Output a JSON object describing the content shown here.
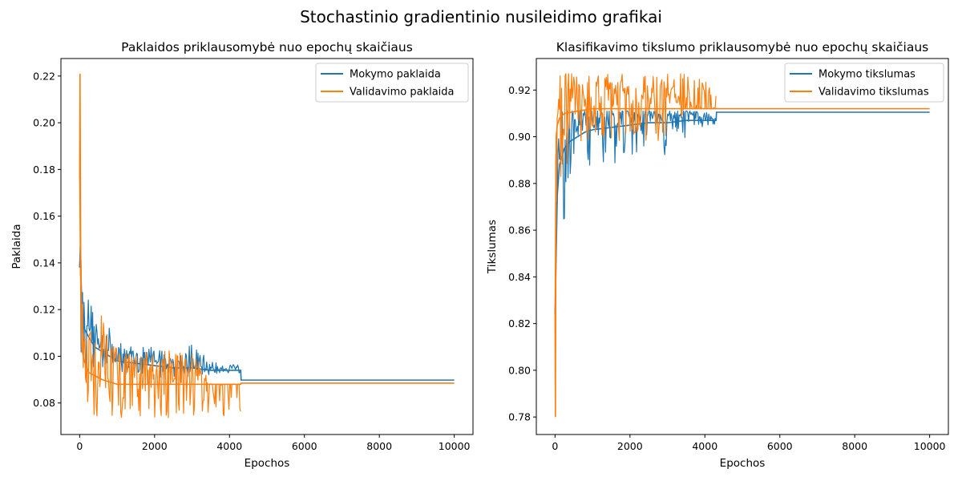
{
  "suptitle": "Stochastinio gradientinio nusileidimo grafikai",
  "colors": {
    "train": "#1f77b4",
    "val": "#ff7f0e"
  },
  "chart_data": [
    {
      "type": "line",
      "title": "Paklaidos priklausomybė nuo epochų skaičiaus",
      "xlabel": "Epochos",
      "ylabel": "Paklaida",
      "xlim": [
        -500,
        10500
      ],
      "ylim": [
        0.0665,
        0.2275
      ],
      "xticks": [
        0,
        2000,
        4000,
        6000,
        8000,
        10000
      ],
      "yticks": [
        0.08,
        0.1,
        0.12,
        0.14,
        0.16,
        0.18,
        0.2,
        0.22
      ],
      "ytick_decimals": 2,
      "grid": false,
      "legend_position": "top-right",
      "series": [
        {
          "name": "Mokymo paklaida",
          "color": "#1f77b4",
          "x": [
            0,
            20,
            60,
            120,
            250,
            400,
            600,
            800,
            1000,
            1500,
            2000,
            2500,
            3000,
            3500,
            4000,
            4300,
            4310,
            10000
          ],
          "y": [
            0.138,
            0.148,
            0.118,
            0.112,
            0.108,
            0.104,
            0.102,
            0.1,
            0.098,
            0.097,
            0.096,
            0.095,
            0.095,
            0.094,
            0.094,
            0.094,
            0.0898,
            0.0898
          ],
          "band_low": [
            0.104,
            0.1,
            0.096,
            0.094,
            0.093,
            0.093,
            0.093,
            0.092,
            0.092,
            0.092,
            0.091,
            0.091,
            0.091,
            0.092,
            0.092,
            0.092,
            0.0898,
            0.0898
          ],
          "band_high": [
            0.138,
            0.148,
            0.132,
            0.126,
            0.125,
            0.118,
            0.117,
            0.112,
            0.106,
            0.104,
            0.105,
            0.101,
            0.105,
            0.098,
            0.097,
            0.097,
            0.0898,
            0.0898
          ]
        },
        {
          "name": "Validavimo paklaida",
          "color": "#ff7f0e",
          "x": [
            0,
            10,
            30,
            60,
            120,
            250,
            600,
            1000,
            1500,
            2000,
            2500,
            3000,
            3500,
            4000,
            4300,
            4310,
            10000
          ],
          "y": [
            0.176,
            0.221,
            0.132,
            0.103,
            0.098,
            0.093,
            0.09,
            0.088,
            0.088,
            0.088,
            0.088,
            0.088,
            0.088,
            0.088,
            0.088,
            0.0885,
            0.0885
          ],
          "band_low": [
            0.088,
            0.088,
            0.088,
            0.088,
            0.088,
            0.0735,
            0.0735,
            0.0735,
            0.0735,
            0.0735,
            0.0735,
            0.0735,
            0.0735,
            0.0735,
            0.0735,
            0.0885,
            0.0885
          ],
          "band_high": [
            0.176,
            0.221,
            0.149,
            0.133,
            0.118,
            0.118,
            0.118,
            0.103,
            0.103,
            0.103,
            0.103,
            0.103,
            0.088,
            0.088,
            0.088,
            0.0885,
            0.0885
          ]
        }
      ]
    },
    {
      "type": "line",
      "title": "Klasifikavimo tikslumo priklausomybė nuo epochų skaičiaus",
      "xlabel": "Epochos",
      "ylabel": "Tikslumas",
      "xlim": [
        -500,
        10500
      ],
      "ylim": [
        0.7725,
        0.9335
      ],
      "xticks": [
        0,
        2000,
        4000,
        6000,
        8000,
        10000
      ],
      "yticks": [
        0.78,
        0.8,
        0.82,
        0.84,
        0.86,
        0.88,
        0.9,
        0.92
      ],
      "ytick_decimals": 2,
      "grid": false,
      "legend_position": "top-right",
      "series": [
        {
          "name": "Mokymo tikslumas",
          "color": "#1f77b4",
          "x": [
            0,
            20,
            60,
            120,
            250,
            400,
            600,
            800,
            1000,
            1500,
            2000,
            2500,
            3000,
            3500,
            4000,
            4300,
            4310,
            10000
          ],
          "y": [
            0.824,
            0.84,
            0.875,
            0.888,
            0.895,
            0.898,
            0.9,
            0.902,
            0.903,
            0.904,
            0.905,
            0.906,
            0.906,
            0.907,
            0.907,
            0.907,
            0.9105,
            0.9105
          ],
          "band_low": [
            0.824,
            0.84,
            0.862,
            0.866,
            0.861,
            0.87,
            0.871,
            0.884,
            0.886,
            0.887,
            0.892,
            0.892,
            0.892,
            0.9,
            0.904,
            0.904,
            0.9105,
            0.9105
          ],
          "band_high": [
            0.912,
            0.912,
            0.911,
            0.911,
            0.911,
            0.911,
            0.911,
            0.911,
            0.911,
            0.911,
            0.911,
            0.911,
            0.911,
            0.911,
            0.911,
            0.911,
            0.9105,
            0.9105
          ]
        },
        {
          "name": "Validavimo tikslumas",
          "color": "#ff7f0e",
          "x": [
            0,
            10,
            30,
            60,
            120,
            250,
            600,
            1000,
            1500,
            2000,
            2500,
            3000,
            3500,
            4000,
            4300,
            4310,
            10000
          ],
          "y": [
            0.824,
            0.78,
            0.9,
            0.905,
            0.908,
            0.91,
            0.911,
            0.912,
            0.912,
            0.912,
            0.912,
            0.912,
            0.912,
            0.912,
            0.912,
            0.912,
            0.912
          ],
          "band_low": [
            0.824,
            0.779,
            0.862,
            0.88,
            0.882,
            0.882,
            0.897,
            0.897,
            0.897,
            0.897,
            0.897,
            0.897,
            0.912,
            0.912,
            0.912,
            0.912,
            0.912
          ],
          "band_high": [
            0.912,
            0.912,
            0.912,
            0.912,
            0.927,
            0.927,
            0.927,
            0.927,
            0.927,
            0.927,
            0.927,
            0.927,
            0.927,
            0.927,
            0.927,
            0.912,
            0.912
          ]
        }
      ]
    }
  ]
}
